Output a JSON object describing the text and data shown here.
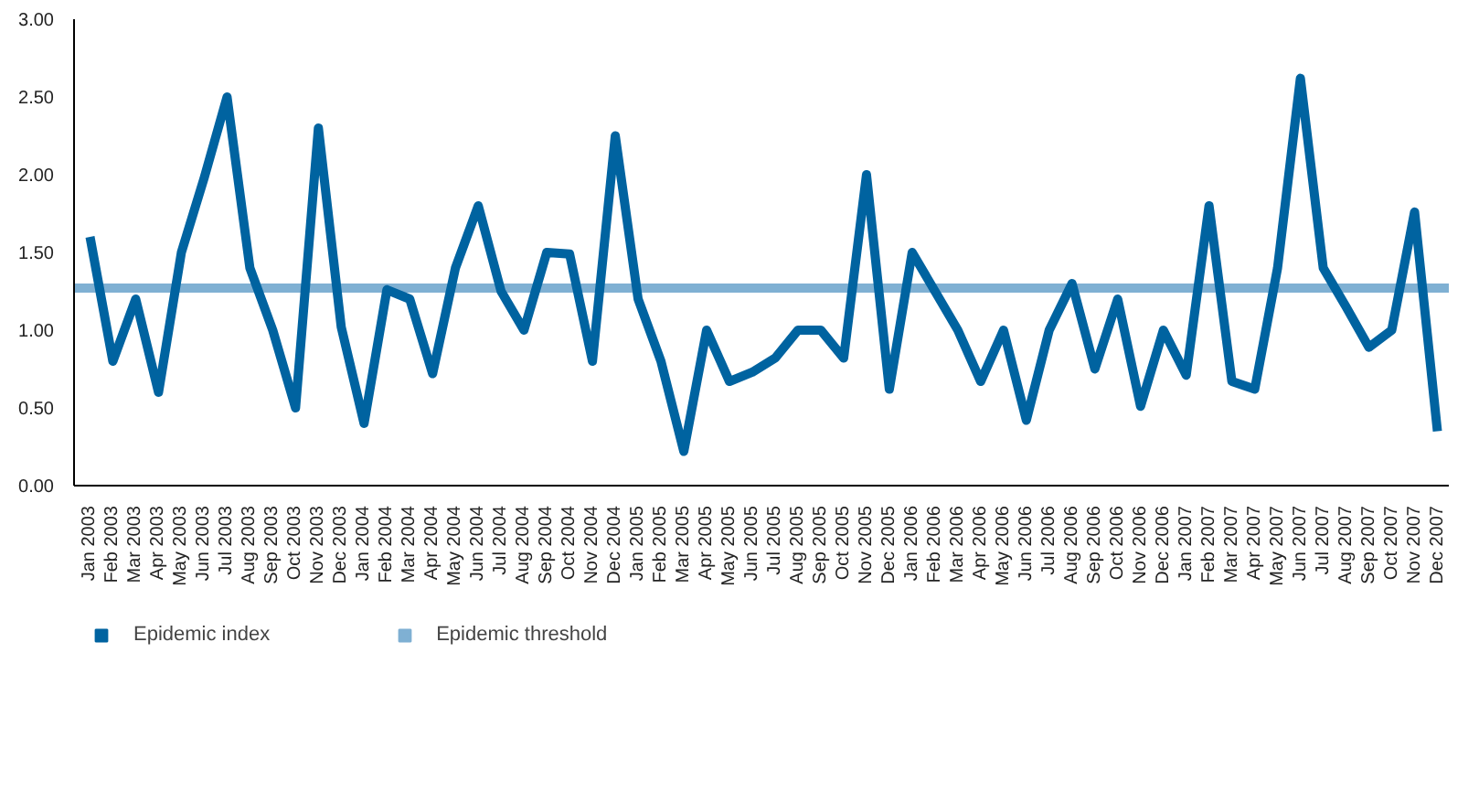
{
  "chart_data": {
    "type": "line",
    "categories": [
      "Jan 2003",
      "Feb 2003",
      "Mar 2003",
      "Apr 2003",
      "May 2003",
      "Jun 2003",
      "Jul 2003",
      "Aug 2003",
      "Sep 2003",
      "Oct 2003",
      "Nov 2003",
      "Dec 2003",
      "Jan 2004",
      "Feb 2004",
      "Mar 2004",
      "Apr 2004",
      "May 2004",
      "Jun 2004",
      "Jul 2004",
      "Aug 2004",
      "Sep 2004",
      "Oct 2004",
      "Nov 2004",
      "Dec 2004",
      "Jan 2005",
      "Feb 2005",
      "Mar 2005",
      "Apr 2005",
      "May 2005",
      "Jun 2005",
      "Jul 2005",
      "Aug 2005",
      "Sep 2005",
      "Oct 2005",
      "Nov 2005",
      "Dec 2005",
      "Jan 2006",
      "Feb 2006",
      "Mar 2006",
      "Apr 2006",
      "May 2006",
      "Jun 2006",
      "Jul 2006",
      "Aug 2006",
      "Sep 2006",
      "Oct 2006",
      "Nov 2006",
      "Dec 2006",
      "Jan 2007",
      "Feb 2007",
      "Mar 2007",
      "Apr 2007",
      "May 2007",
      "Jun 2007",
      "Jul 2007",
      "Aug 2007",
      "Sep 2007",
      "Oct 2007",
      "Nov 2007",
      "Dec 2007"
    ],
    "series": [
      {
        "name": "Epidemic index",
        "color": "#0063a0",
        "values": [
          1.6,
          0.8,
          1.2,
          0.6,
          1.5,
          1.98,
          2.5,
          1.4,
          1.0,
          0.5,
          2.3,
          1.02,
          0.4,
          1.26,
          1.2,
          0.72,
          1.4,
          1.8,
          1.25,
          1.0,
          1.5,
          1.49,
          0.8,
          2.25,
          1.2,
          0.8,
          0.22,
          1.0,
          0.67,
          0.73,
          0.82,
          1.0,
          1.0,
          0.82,
          2.0,
          0.62,
          1.5,
          1.25,
          1.0,
          0.67,
          1.0,
          0.42,
          1.0,
          1.3,
          0.75,
          1.2,
          0.51,
          1.0,
          0.71,
          1.8,
          0.67,
          0.62,
          1.4,
          2.62,
          1.4,
          1.15,
          0.89,
          1.0,
          1.76,
          0.35
        ]
      }
    ],
    "ref_lines": [
      {
        "axis": "y",
        "value": 1.27,
        "label": "Epidemic threshold",
        "color": "#7fb0d3"
      }
    ],
    "ylim": [
      0,
      3
    ],
    "yticks": [
      {
        "value": 0,
        "label": "0.00"
      },
      {
        "value": 0.5,
        "label": "0.50"
      },
      {
        "value": 1,
        "label": "1.00"
      },
      {
        "value": 1.5,
        "label": "1.50"
      },
      {
        "value": 2,
        "label": "2.00"
      },
      {
        "value": 2.5,
        "label": "2.50"
      },
      {
        "value": 3,
        "label": "3.00"
      }
    ],
    "grid": false,
    "legend": "bottom left",
    "marker": "none",
    "line_style": "solid"
  }
}
